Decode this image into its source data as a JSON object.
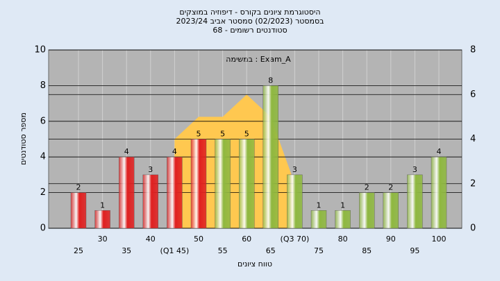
{
  "chart_data": {
    "type": "bar",
    "title": [
      "היסטוגרמת ציונים בקורס - דיפוזיה במוצקים",
      "בסמסטר (02/2023)  סמסטר אביב 2023/24",
      "סטודנטים רשומים - 68"
    ],
    "annotation": "במשימה : Exam_A",
    "x_label": "טווח ציונים",
    "y_label": "מספר סטודנטים",
    "categories": [
      "25",
      "30",
      "35",
      "40",
      "(Q1 45)",
      "50",
      "55",
      "60",
      "65",
      "(Q3 70)",
      "75",
      "80",
      "85",
      "90",
      "95",
      "100"
    ],
    "values": [
      2,
      1,
      4,
      3,
      4,
      5,
      5,
      5,
      8,
      3,
      1,
      1,
      2,
      2,
      3,
      4
    ],
    "colors": [
      "#e02020",
      "#e02020",
      "#e02020",
      "#e02020",
      "#e02020",
      "#e02020",
      "#8fb840",
      "#8fb840",
      "#8fb840",
      "#8fb840",
      "#8fb840",
      "#8fb840",
      "#8fb840",
      "#8fb840",
      "#8fb840",
      "#8fb840"
    ],
    "area": {
      "color": "#ffc850",
      "axis": "y2",
      "values": [
        null,
        null,
        null,
        null,
        4,
        5,
        5,
        6,
        5,
        2,
        null,
        null,
        null,
        null,
        null,
        null
      ]
    },
    "ylim": [
      0,
      10
    ],
    "yticks": [
      0,
      2,
      4,
      6,
      8,
      10
    ],
    "y2lim": [
      0,
      8
    ],
    "y2ticks": [
      0,
      2,
      4,
      6,
      8
    ],
    "grid": true
  }
}
